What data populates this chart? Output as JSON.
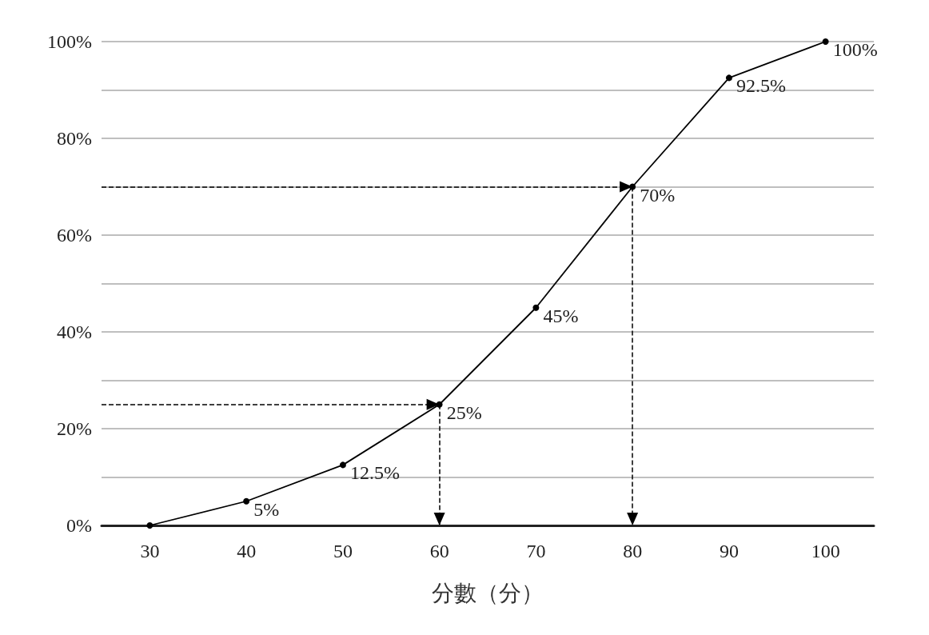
{
  "chart_data": {
    "type": "line",
    "xlabel": "分數（分）",
    "x": [
      30,
      40,
      50,
      60,
      70,
      80,
      90,
      100
    ],
    "series": [
      {
        "color": "#000000",
        "values": [
          0,
          5,
          12.5,
          25,
          45,
          70,
          92.5,
          100
        ],
        "value_labels": [
          null,
          "5%",
          "12.5%",
          "25%",
          "45%",
          "70%",
          "92.5%",
          "100%"
        ]
      }
    ],
    "xlim": [
      25,
      105
    ],
    "xticks": [
      30,
      40,
      50,
      60,
      70,
      80,
      90,
      100
    ],
    "ylim": [
      0,
      100
    ],
    "yticks": [
      {
        "value": 0,
        "label": "0%"
      },
      {
        "value": 10,
        "label": null
      },
      {
        "value": 20,
        "label": "20%"
      },
      {
        "value": 30,
        "label": null
      },
      {
        "value": 40,
        "label": "40%"
      },
      {
        "value": 50,
        "label": null
      },
      {
        "value": 60,
        "label": "60%"
      },
      {
        "value": 70,
        "label": null
      },
      {
        "value": 80,
        "label": "80%"
      },
      {
        "value": 90,
        "label": null
      },
      {
        "value": 100,
        "label": "100%"
      }
    ],
    "ref_lines": [
      {
        "axis": "y",
        "value": 70,
        "line_style": "dashed"
      },
      {
        "axis": "x",
        "value": 80,
        "line_style": "dashed"
      },
      {
        "axis": "x",
        "value": 60,
        "line_style": "dashed"
      },
      {
        "axis": "y",
        "value": 25,
        "line_style": "dashed"
      }
    ],
    "grid": "y",
    "marker": "circle",
    "line_style": "solid"
  }
}
